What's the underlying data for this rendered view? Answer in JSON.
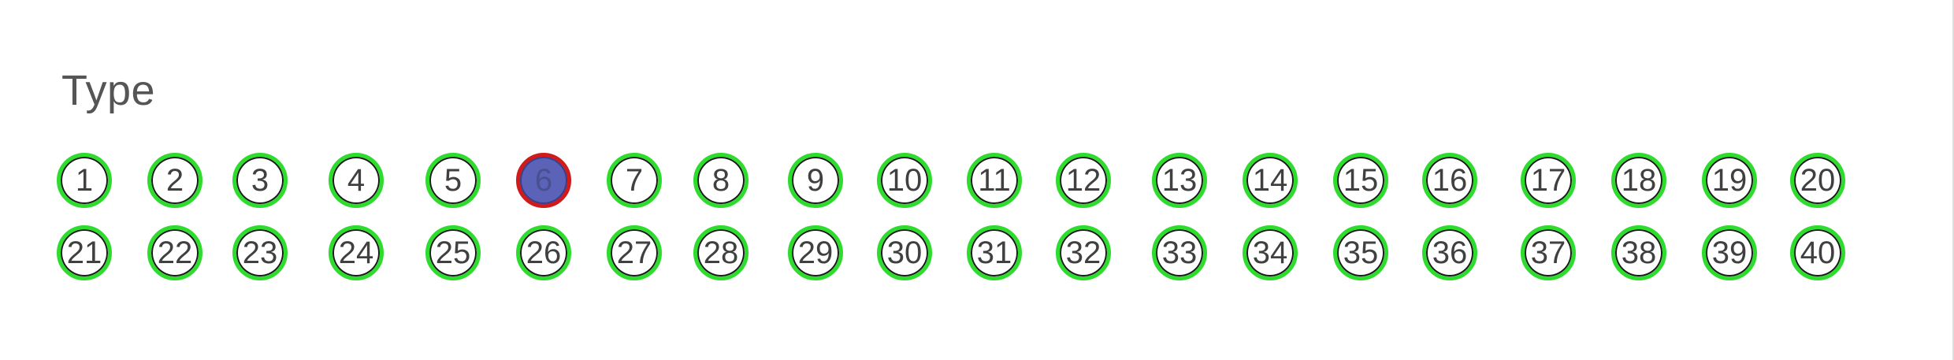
{
  "title": "Type",
  "colors": {
    "ring": "#2ddc2d",
    "selected_fill": "#5b63b8",
    "selected_ring": "#d11a1a"
  },
  "selected": "6",
  "options": [
    "1",
    "2",
    "3",
    "4",
    "5",
    "6",
    "7",
    "8",
    "9",
    "10",
    "11",
    "12",
    "13",
    "14",
    "15",
    "16",
    "17",
    "18",
    "19",
    "20",
    "21",
    "22",
    "23",
    "24",
    "25",
    "26",
    "27",
    "28",
    "29",
    "30",
    "31",
    "32",
    "33",
    "34",
    "35",
    "36",
    "37",
    "38",
    "39",
    "40"
  ]
}
